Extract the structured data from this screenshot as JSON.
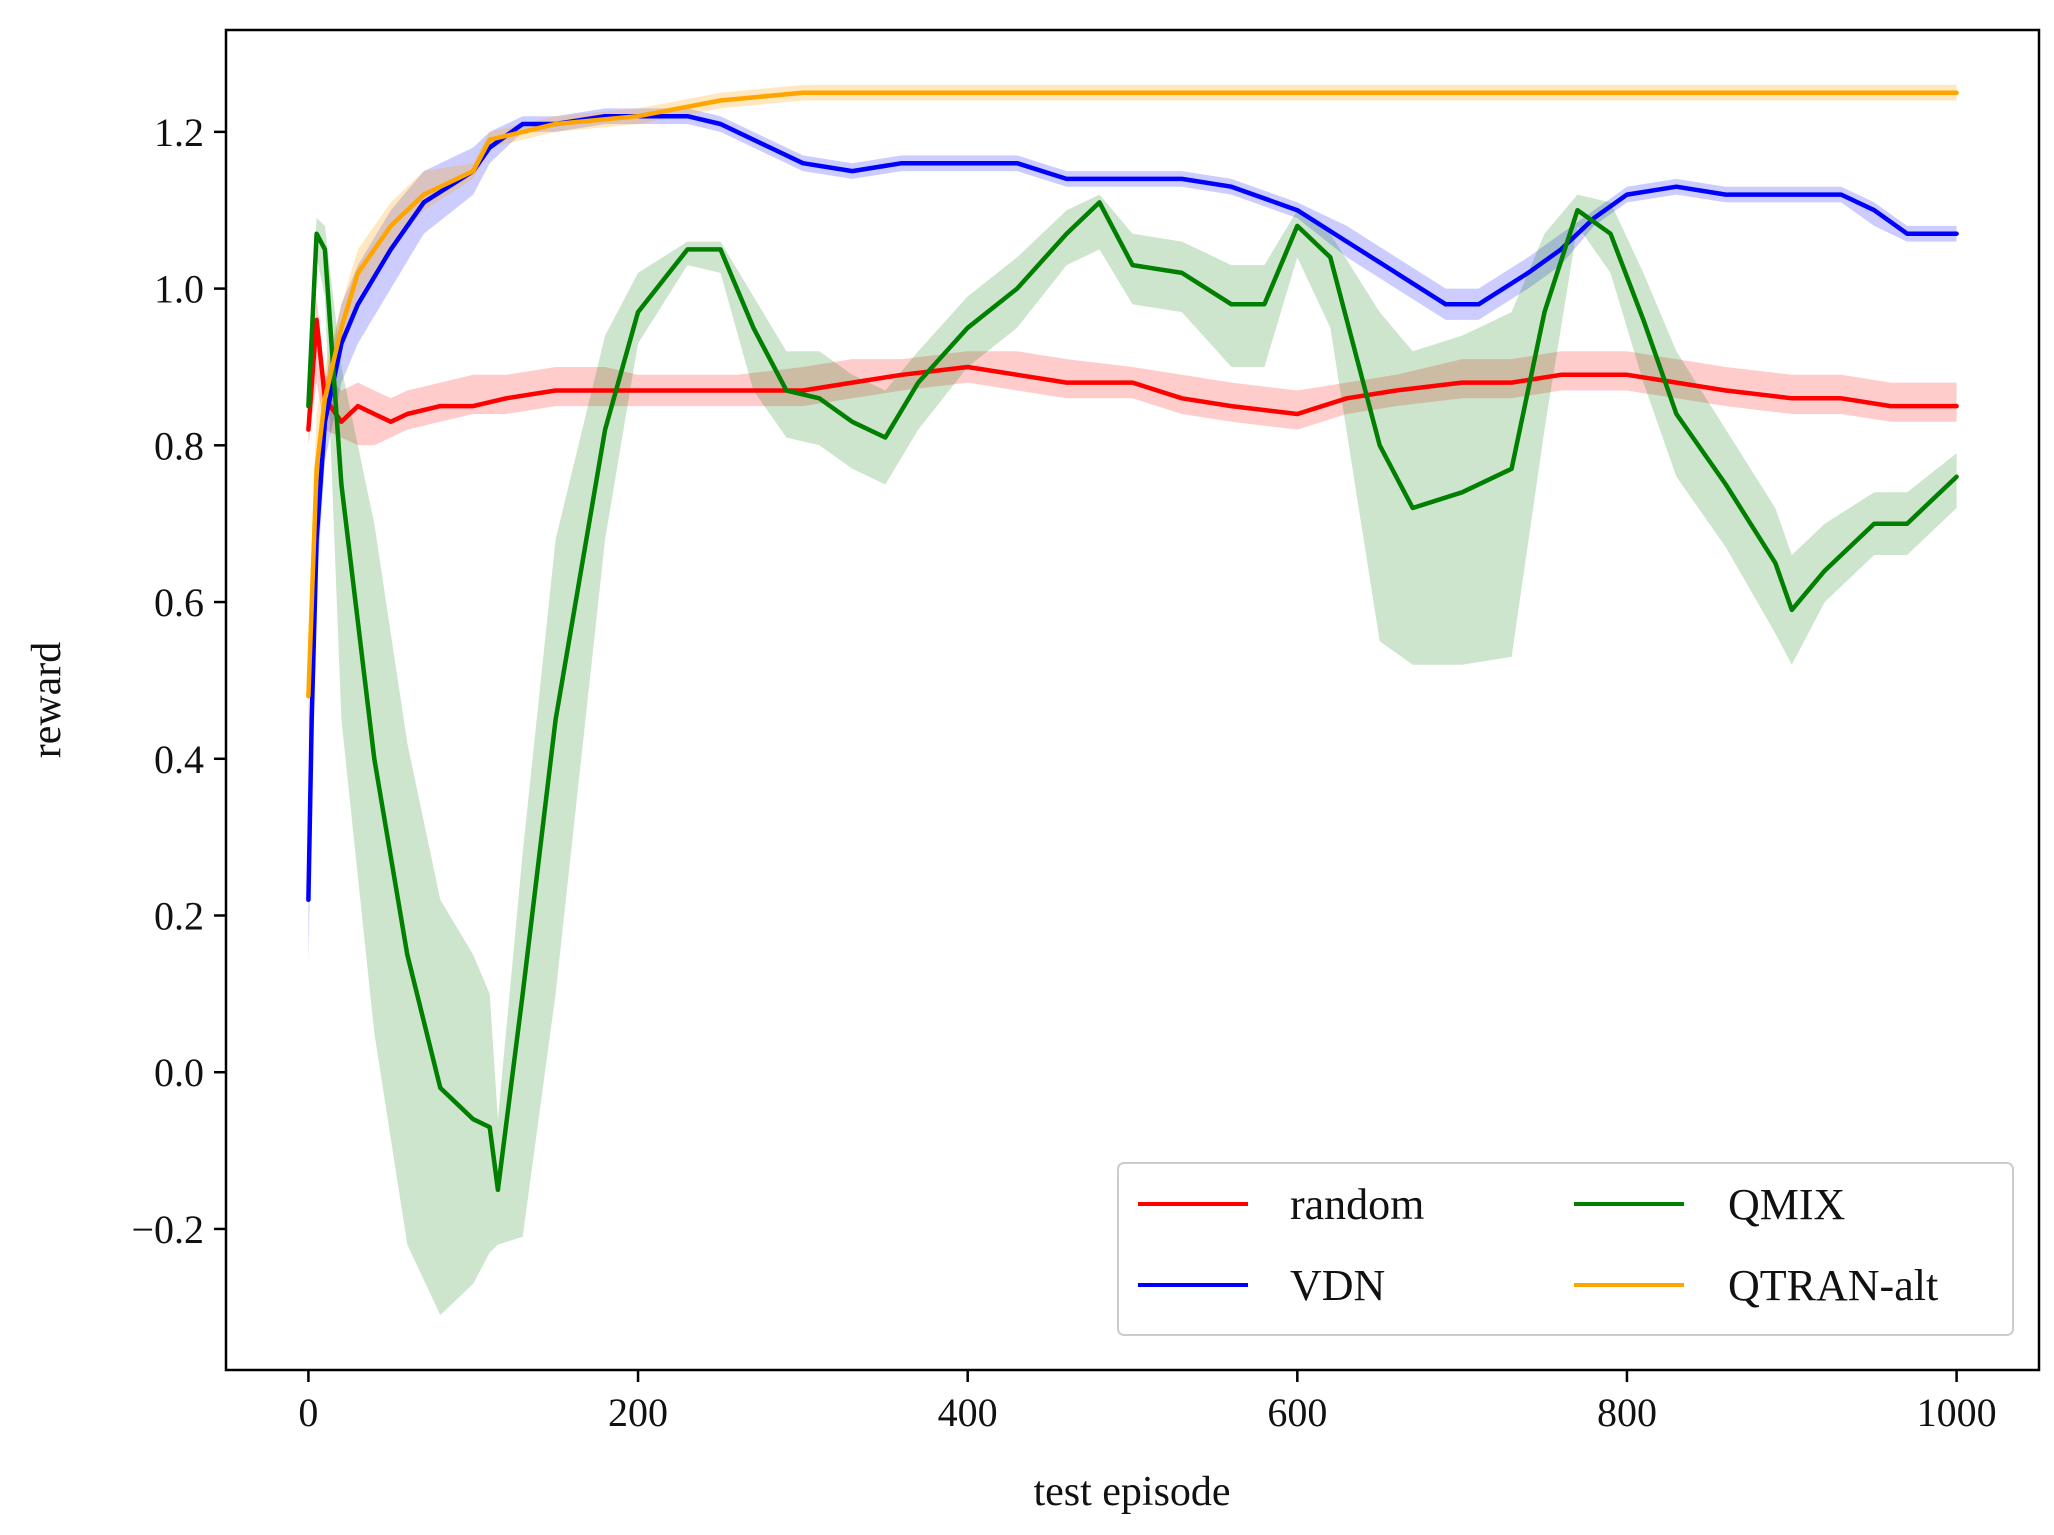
{
  "chart_data": {
    "type": "line",
    "title": "",
    "xlabel": "test episode",
    "ylabel": "reward",
    "xlim": [
      -50,
      1050
    ],
    "ylim": [
      -0.38,
      1.33
    ],
    "xticks": [
      0,
      200,
      400,
      600,
      800,
      1000
    ],
    "xtick_labels": [
      "0",
      "200",
      "400",
      "600",
      "800",
      "1000"
    ],
    "yticks": [
      -0.2,
      0.0,
      0.2,
      0.4,
      0.6,
      0.8,
      1.0,
      1.2
    ],
    "ytick_labels": [
      "−0.2",
      "0.0",
      "0.2",
      "0.4",
      "0.6",
      "0.8",
      "1.0",
      "1.2"
    ],
    "grid": false,
    "legend_position": "bottom-right",
    "legend_columns": 2,
    "series": [
      {
        "name": "random",
        "color": "#ff0000",
        "band_opacity": 0.2,
        "x": [
          0,
          5,
          10,
          20,
          30,
          40,
          50,
          60,
          80,
          100,
          120,
          150,
          180,
          200,
          230,
          260,
          300,
          330,
          360,
          400,
          430,
          460,
          500,
          530,
          560,
          600,
          630,
          660,
          700,
          730,
          760,
          800,
          830,
          860,
          900,
          930,
          960,
          1000
        ],
        "y": [
          0.82,
          0.96,
          0.86,
          0.83,
          0.85,
          0.84,
          0.83,
          0.84,
          0.85,
          0.85,
          0.86,
          0.87,
          0.87,
          0.87,
          0.87,
          0.87,
          0.87,
          0.88,
          0.89,
          0.9,
          0.89,
          0.88,
          0.88,
          0.86,
          0.85,
          0.84,
          0.86,
          0.87,
          0.88,
          0.88,
          0.89,
          0.89,
          0.88,
          0.87,
          0.86,
          0.86,
          0.85,
          0.85
        ],
        "lower": [
          0.8,
          0.88,
          0.82,
          0.81,
          0.8,
          0.8,
          0.81,
          0.82,
          0.83,
          0.84,
          0.84,
          0.85,
          0.85,
          0.85,
          0.85,
          0.85,
          0.85,
          0.86,
          0.87,
          0.88,
          0.87,
          0.86,
          0.86,
          0.84,
          0.83,
          0.82,
          0.84,
          0.85,
          0.86,
          0.86,
          0.87,
          0.87,
          0.86,
          0.85,
          0.84,
          0.84,
          0.83,
          0.83
        ],
        "upper": [
          0.84,
          0.99,
          0.89,
          0.87,
          0.88,
          0.87,
          0.86,
          0.87,
          0.88,
          0.89,
          0.89,
          0.9,
          0.9,
          0.89,
          0.89,
          0.89,
          0.9,
          0.91,
          0.91,
          0.92,
          0.92,
          0.91,
          0.9,
          0.89,
          0.88,
          0.87,
          0.88,
          0.89,
          0.91,
          0.91,
          0.92,
          0.92,
          0.91,
          0.9,
          0.89,
          0.89,
          0.88,
          0.88
        ]
      },
      {
        "name": "VDN",
        "color": "#0000ff",
        "band_opacity": 0.2,
        "x": [
          0,
          2,
          5,
          10,
          20,
          30,
          50,
          70,
          100,
          110,
          130,
          150,
          180,
          200,
          230,
          250,
          280,
          300,
          330,
          360,
          400,
          430,
          460,
          500,
          530,
          560,
          600,
          630,
          660,
          690,
          710,
          740,
          760,
          780,
          800,
          830,
          860,
          900,
          930,
          950,
          970,
          1000
        ],
        "y": [
          0.22,
          0.45,
          0.68,
          0.83,
          0.93,
          0.98,
          1.05,
          1.11,
          1.15,
          1.18,
          1.21,
          1.21,
          1.22,
          1.22,
          1.22,
          1.21,
          1.18,
          1.16,
          1.15,
          1.16,
          1.16,
          1.16,
          1.14,
          1.14,
          1.14,
          1.13,
          1.1,
          1.06,
          1.02,
          0.98,
          0.98,
          1.02,
          1.05,
          1.09,
          1.12,
          1.13,
          1.12,
          1.12,
          1.12,
          1.1,
          1.07,
          1.07
        ],
        "lower": [
          0.14,
          0.35,
          0.62,
          0.78,
          0.88,
          0.93,
          1.0,
          1.07,
          1.12,
          1.16,
          1.2,
          1.2,
          1.21,
          1.21,
          1.21,
          1.2,
          1.17,
          1.15,
          1.14,
          1.15,
          1.15,
          1.15,
          1.13,
          1.13,
          1.13,
          1.12,
          1.09,
          1.04,
          1.0,
          0.96,
          0.96,
          1.0,
          1.03,
          1.08,
          1.11,
          1.12,
          1.11,
          1.11,
          1.11,
          1.08,
          1.06,
          1.06
        ],
        "upper": [
          0.3,
          0.55,
          0.74,
          0.88,
          0.98,
          1.03,
          1.1,
          1.15,
          1.18,
          1.2,
          1.22,
          1.22,
          1.23,
          1.23,
          1.23,
          1.22,
          1.19,
          1.17,
          1.16,
          1.17,
          1.17,
          1.17,
          1.15,
          1.15,
          1.15,
          1.14,
          1.11,
          1.08,
          1.04,
          1.0,
          1.0,
          1.04,
          1.07,
          1.1,
          1.13,
          1.14,
          1.13,
          1.13,
          1.13,
          1.11,
          1.08,
          1.08
        ]
      },
      {
        "name": "QMIX",
        "color": "#007f00",
        "band_opacity": 0.2,
        "x": [
          0,
          5,
          10,
          20,
          40,
          60,
          80,
          100,
          110,
          115,
          130,
          150,
          180,
          200,
          230,
          250,
          270,
          290,
          310,
          330,
          350,
          370,
          400,
          430,
          460,
          480,
          500,
          530,
          560,
          580,
          600,
          620,
          650,
          670,
          700,
          730,
          750,
          770,
          790,
          810,
          830,
          860,
          890,
          900,
          920,
          950,
          970,
          1000
        ],
        "y": [
          0.85,
          1.07,
          1.05,
          0.75,
          0.4,
          0.15,
          -0.02,
          -0.06,
          -0.07,
          -0.15,
          0.1,
          0.45,
          0.82,
          0.97,
          1.05,
          1.05,
          0.95,
          0.87,
          0.86,
          0.83,
          0.81,
          0.88,
          0.95,
          1.0,
          1.07,
          1.11,
          1.03,
          1.02,
          0.98,
          0.98,
          1.08,
          1.04,
          0.8,
          0.72,
          0.74,
          0.77,
          0.97,
          1.1,
          1.07,
          0.96,
          0.84,
          0.75,
          0.65,
          0.59,
          0.64,
          0.7,
          0.7,
          0.76
        ],
        "lower": [
          0.83,
          1.04,
          0.99,
          0.45,
          0.05,
          -0.22,
          -0.31,
          -0.27,
          -0.23,
          -0.22,
          -0.21,
          0.1,
          0.68,
          0.93,
          1.03,
          1.02,
          0.87,
          0.81,
          0.8,
          0.77,
          0.75,
          0.82,
          0.9,
          0.95,
          1.03,
          1.05,
          0.98,
          0.97,
          0.9,
          0.9,
          1.04,
          0.95,
          0.55,
          0.52,
          0.52,
          0.53,
          0.82,
          1.08,
          1.02,
          0.88,
          0.76,
          0.67,
          0.56,
          0.52,
          0.6,
          0.66,
          0.66,
          0.72
        ],
        "upper": [
          0.87,
          1.09,
          1.08,
          0.9,
          0.7,
          0.42,
          0.22,
          0.15,
          0.1,
          -0.06,
          0.28,
          0.68,
          0.94,
          1.02,
          1.06,
          1.06,
          0.99,
          0.92,
          0.92,
          0.89,
          0.87,
          0.92,
          0.99,
          1.04,
          1.1,
          1.12,
          1.07,
          1.06,
          1.03,
          1.03,
          1.1,
          1.07,
          0.97,
          0.92,
          0.94,
          0.97,
          1.07,
          1.12,
          1.11,
          1.02,
          0.92,
          0.82,
          0.72,
          0.66,
          0.7,
          0.74,
          0.74,
          0.79
        ]
      },
      {
        "name": "QTRAN-alt",
        "color": "#ffa500",
        "band_opacity": 0.25,
        "x": [
          0,
          5,
          10,
          20,
          30,
          50,
          70,
          100,
          110,
          130,
          150,
          200,
          250,
          300,
          350,
          400,
          450,
          500,
          600,
          700,
          800,
          900,
          1000
        ],
        "y": [
          0.48,
          0.77,
          0.86,
          0.95,
          1.02,
          1.08,
          1.12,
          1.15,
          1.19,
          1.2,
          1.21,
          1.22,
          1.24,
          1.25,
          1.25,
          1.25,
          1.25,
          1.25,
          1.25,
          1.25,
          1.25,
          1.25,
          1.25
        ],
        "lower": [
          0.4,
          0.7,
          0.82,
          0.92,
          0.99,
          1.05,
          1.1,
          1.14,
          1.18,
          1.19,
          1.2,
          1.21,
          1.23,
          1.24,
          1.24,
          1.24,
          1.24,
          1.24,
          1.24,
          1.24,
          1.24,
          1.24,
          1.24
        ],
        "upper": [
          0.56,
          0.84,
          0.9,
          0.98,
          1.05,
          1.11,
          1.15,
          1.16,
          1.2,
          1.21,
          1.22,
          1.23,
          1.25,
          1.26,
          1.26,
          1.26,
          1.26,
          1.26,
          1.26,
          1.26,
          1.26,
          1.26,
          1.26
        ]
      }
    ]
  }
}
